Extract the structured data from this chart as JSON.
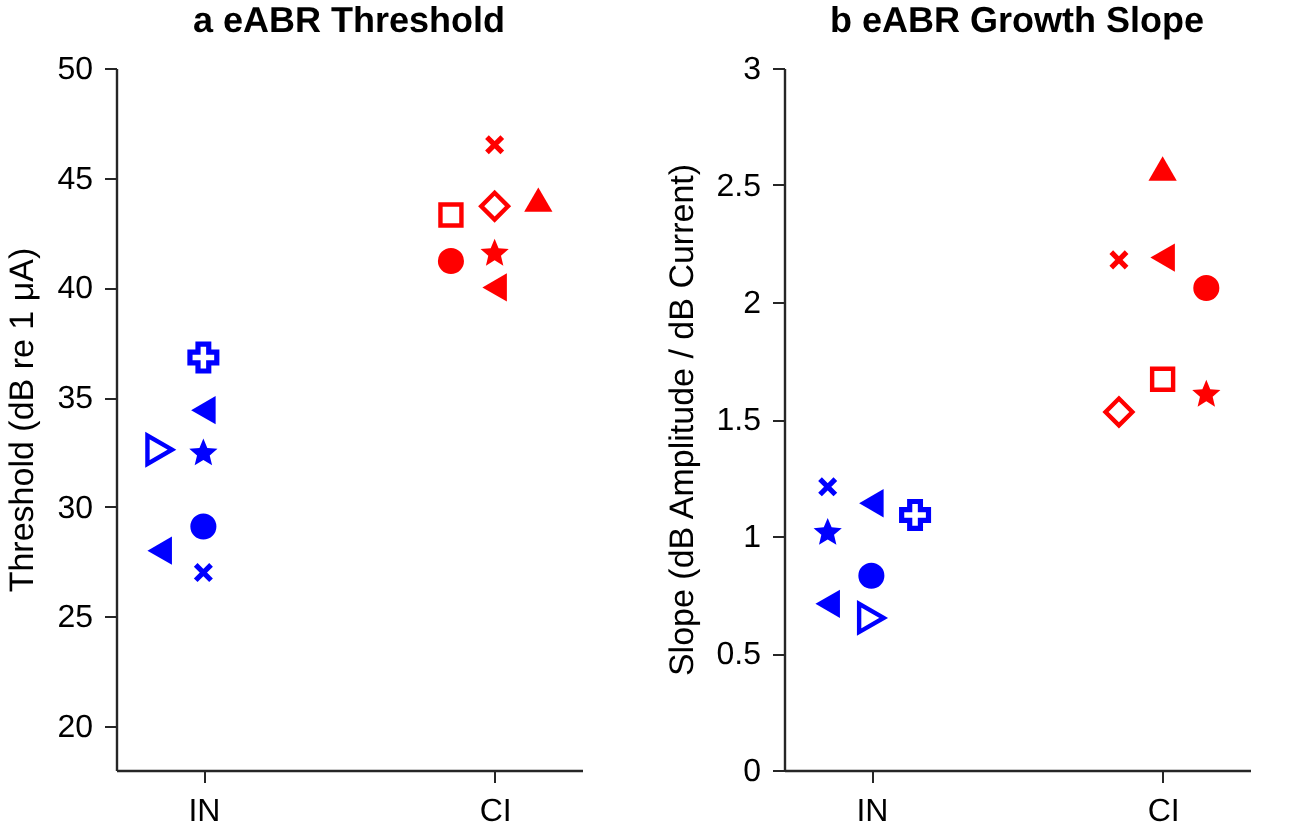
{
  "chart_data": [
    {
      "type": "scatter",
      "title": "a  eABR Threshold",
      "ylabel": "Threshold (dB re 1 μA)",
      "categories": [
        "IN",
        "CI"
      ],
      "ylim": [
        18,
        50
      ],
      "yticks": [
        20,
        25,
        30,
        35,
        40,
        45,
        50
      ],
      "series": [
        {
          "x": [
            "IN"
          ],
          "values": [
            36.8
          ],
          "color": "#0000ff",
          "marker": "cross"
        },
        {
          "x": [
            "IN"
          ],
          "values": [
            34.4
          ],
          "color": "#0000ff",
          "marker": "triangle-left"
        },
        {
          "x": [
            "IN"
          ],
          "values": [
            32.5
          ],
          "color": "#0000ff",
          "marker": "star"
        },
        {
          "x": [
            "IN"
          ],
          "values": [
            32.6
          ],
          "color": "#0000ff",
          "marker": "triangle-right"
        },
        {
          "x": [
            "IN"
          ],
          "values": [
            29.1
          ],
          "color": "#0000ff",
          "marker": "circle"
        },
        {
          "x": [
            "IN"
          ],
          "values": [
            27.0
          ],
          "color": "#0000ff",
          "marker": "x"
        },
        {
          "x": [
            "IN"
          ],
          "values": [
            28.0
          ],
          "color": "#0000ff",
          "marker": "triangle-left"
        },
        {
          "x": [
            "CI"
          ],
          "values": [
            46.5
          ],
          "color": "#ff0000",
          "marker": "x"
        },
        {
          "x": [
            "CI"
          ],
          "values": [
            43.7
          ],
          "color": "#ff0000",
          "marker": "diamond"
        },
        {
          "x": [
            "CI"
          ],
          "values": [
            43.3
          ],
          "color": "#ff0000",
          "marker": "square"
        },
        {
          "x": [
            "CI"
          ],
          "values": [
            44.0
          ],
          "color": "#ff0000",
          "marker": "triangle"
        },
        {
          "x": [
            "CI"
          ],
          "values": [
            41.6
          ],
          "color": "#ff0000",
          "marker": "star"
        },
        {
          "x": [
            "CI"
          ],
          "values": [
            40.0
          ],
          "color": "#ff0000",
          "marker": "triangle-left"
        },
        {
          "x": [
            "CI"
          ],
          "values": [
            41.2
          ],
          "color": "#ff0000",
          "marker": "circle"
        }
      ]
    },
    {
      "type": "scatter",
      "title": "b  eABR Growth Slope",
      "ylabel": "Slope (dB Amplitude / dB Current)",
      "categories": [
        "IN",
        "CI"
      ],
      "ylim": [
        0,
        3
      ],
      "yticks": [
        {
          "value": 0,
          "label": "0"
        },
        0.5,
        {
          "value": 1,
          "label": "1"
        },
        1.5,
        {
          "value": 2,
          "label": "2"
        },
        2.5,
        {
          "value": 3,
          "label": "3"
        }
      ],
      "series": [
        {
          "x": [
            "IN"
          ],
          "values": [
            1.14
          ],
          "color": "#0000ff",
          "marker": "triangle-left"
        },
        {
          "x": [
            "IN"
          ],
          "values": [
            1.21
          ],
          "color": "#0000ff",
          "marker": "x"
        },
        {
          "x": [
            "IN"
          ],
          "values": [
            1.02
          ],
          "color": "#0000ff",
          "marker": "star"
        },
        {
          "x": [
            "IN"
          ],
          "values": [
            1.09
          ],
          "color": "#0000ff",
          "marker": "cross"
        },
        {
          "x": [
            "IN"
          ],
          "values": [
            0.83
          ],
          "color": "#0000ff",
          "marker": "circle"
        },
        {
          "x": [
            "IN"
          ],
          "values": [
            0.65
          ],
          "color": "#0000ff",
          "marker": "triangle-right"
        },
        {
          "x": [
            "IN"
          ],
          "values": [
            0.71
          ],
          "color": "#0000ff",
          "marker": "triangle-left"
        },
        {
          "x": [
            "CI"
          ],
          "values": [
            2.57
          ],
          "color": "#ff0000",
          "marker": "triangle"
        },
        {
          "x": [
            "CI"
          ],
          "values": [
            2.19
          ],
          "color": "#ff0000",
          "marker": "triangle-left"
        },
        {
          "x": [
            "CI"
          ],
          "values": [
            2.18
          ],
          "color": "#ff0000",
          "marker": "x"
        },
        {
          "x": [
            "CI"
          ],
          "values": [
            2.06
          ],
          "color": "#ff0000",
          "marker": "circle"
        },
        {
          "x": [
            "CI"
          ],
          "values": [
            1.67
          ],
          "color": "#ff0000",
          "marker": "square"
        },
        {
          "x": [
            "CI"
          ],
          "values": [
            1.53
          ],
          "color": "#ff0000",
          "marker": "diamond"
        },
        {
          "x": [
            "CI"
          ],
          "values": [
            1.61
          ],
          "color": "#ff0000",
          "marker": "star"
        }
      ]
    }
  ]
}
